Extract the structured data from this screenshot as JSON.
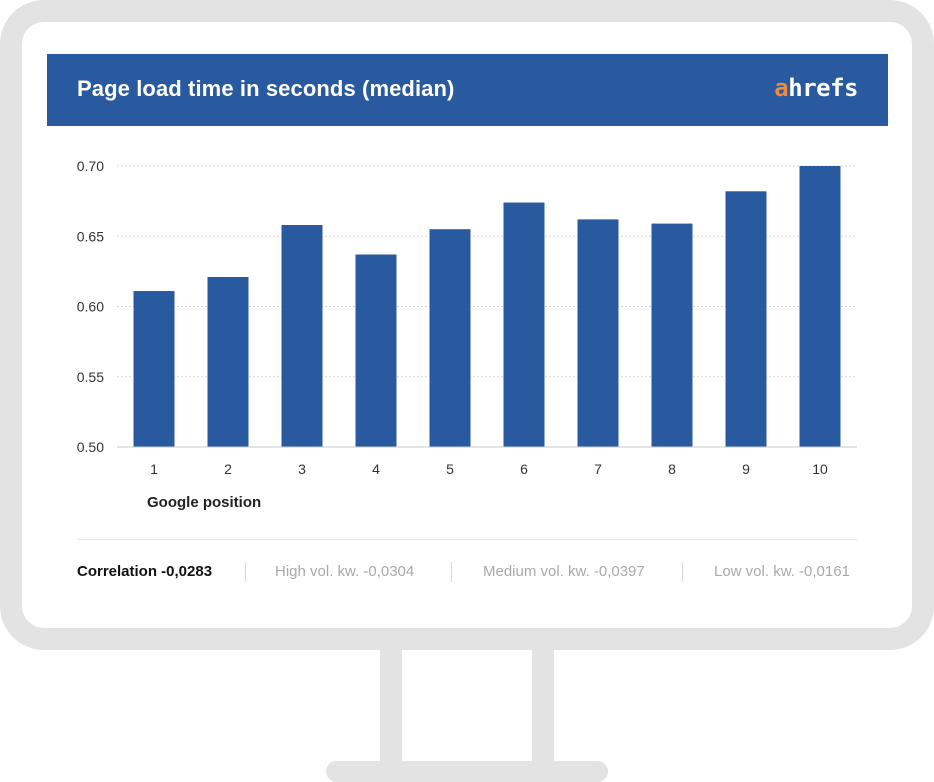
{
  "header": {
    "title": "Page load time in seconds (median)",
    "logo_accent": "a",
    "logo_rest": "hrefs"
  },
  "colors": {
    "header_bg": "#295a9f",
    "bar": "#295a9f",
    "logo_accent": "#f08a3c",
    "frame": "#e3e3e3"
  },
  "chart_data": {
    "type": "bar",
    "title": "Page load time in seconds (median)",
    "xlabel": "Google position",
    "ylabel": "",
    "categories": [
      "1",
      "2",
      "3",
      "4",
      "5",
      "6",
      "7",
      "8",
      "9",
      "10"
    ],
    "values": [
      0.611,
      0.621,
      0.658,
      0.637,
      0.655,
      0.674,
      0.662,
      0.659,
      0.682,
      0.7
    ],
    "ylim": [
      0.5,
      0.7
    ],
    "yticks": [
      "0.50",
      "0.55",
      "0.60",
      "0.65",
      "0.70"
    ],
    "grid": true,
    "legend": "none"
  },
  "footer": {
    "correlation": "Correlation -0,0283",
    "high_vol": "High vol. kw. -0,0304",
    "medium_vol": "Medium vol. kw. -0,0397",
    "low_vol": "Low vol. kw. -0,0161"
  }
}
